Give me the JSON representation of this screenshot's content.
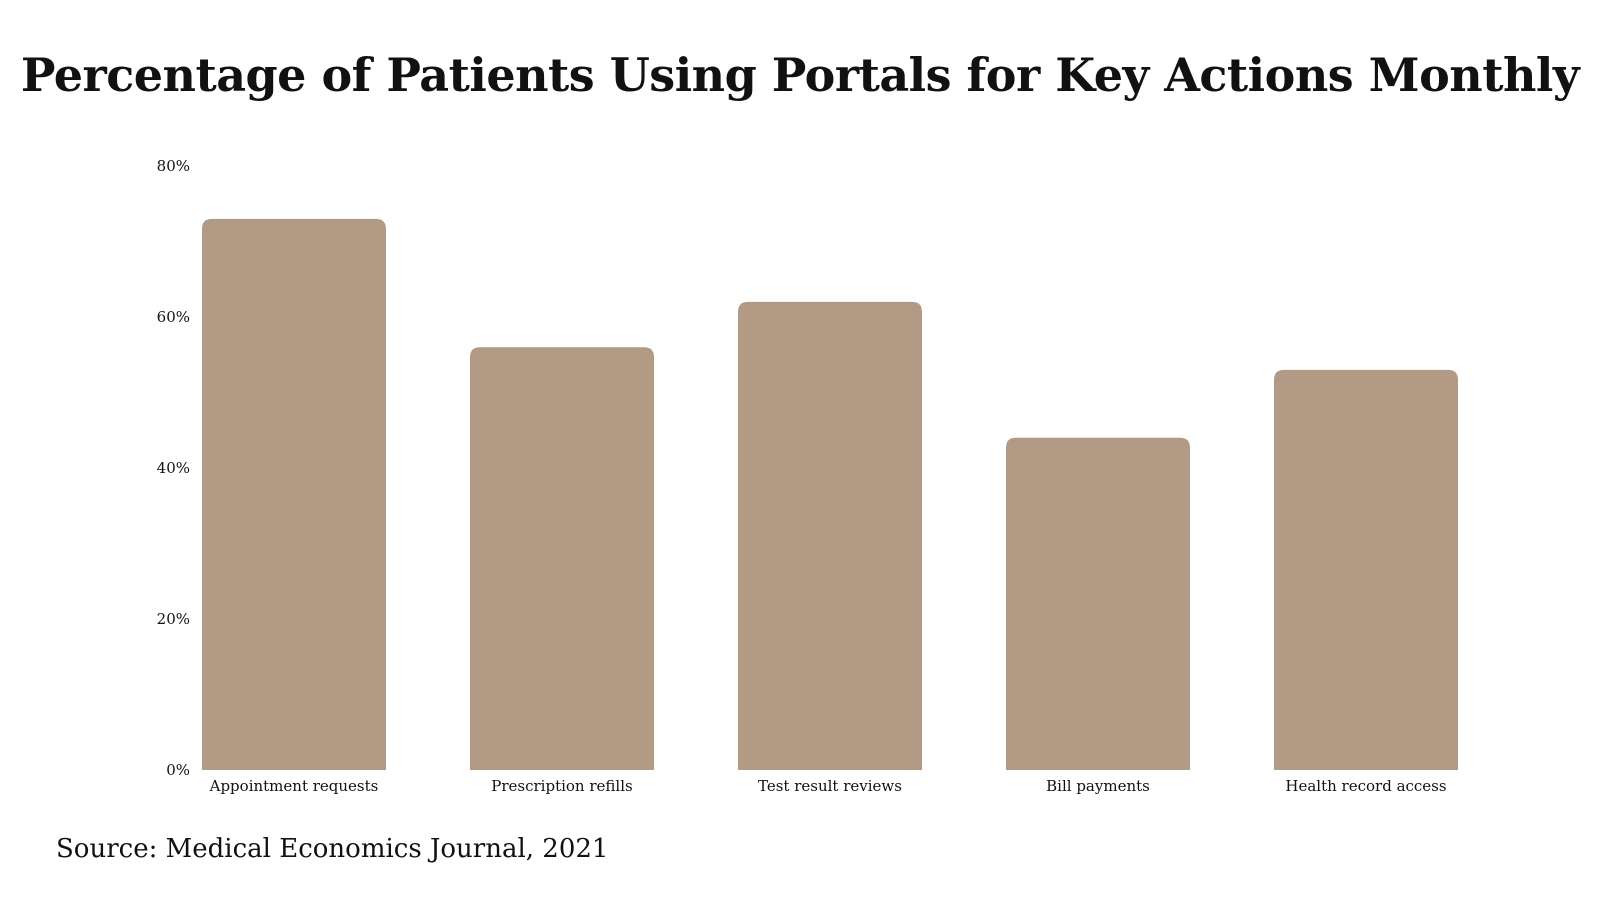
{
  "chart_data": {
    "type": "bar",
    "title": "Percentage of Patients Using Portals for Key Actions Monthly",
    "categories": [
      "Appointment requests",
      "Prescription refills",
      "Test result reviews",
      "Bill payments",
      "Health record access"
    ],
    "values": [
      73,
      56,
      62,
      44,
      53
    ],
    "yticks": [
      "0%",
      "20%",
      "40%",
      "60%",
      "80%"
    ],
    "ylim": [
      0,
      80
    ],
    "xlabel": "",
    "ylabel": "",
    "grid": false,
    "bar_color": "#b39a84"
  },
  "source": {
    "text": "Source:  Medical Economics Journal, 2021"
  }
}
